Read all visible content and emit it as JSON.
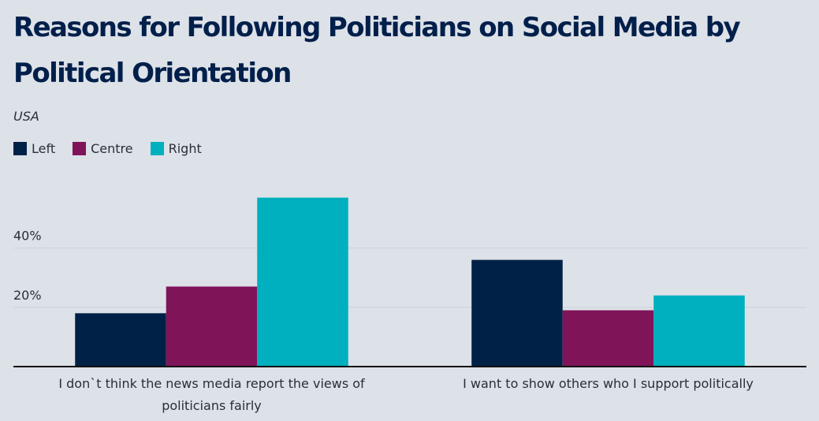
{
  "chart_data": {
    "type": "bar",
    "title": "Reasons for Following Politicians on Social Media by Political Orientation",
    "subtitle": "USA",
    "xlabel": "",
    "ylabel": "",
    "ylim": [
      0,
      60
    ],
    "yticks": [
      20,
      40
    ],
    "ytick_labels": [
      "20%",
      "40%"
    ],
    "grid": true,
    "legend_position": "top-left",
    "categories": [
      [
        "I don`t think the news media report the views of",
        "politicians fairly"
      ],
      [
        "I want to show others who I support politically"
      ]
    ],
    "series": [
      {
        "name": "Left",
        "color": "#002147",
        "values": [
          18,
          36
        ]
      },
      {
        "name": "Centre",
        "color": "#7f1459",
        "values": [
          27,
          19
        ]
      },
      {
        "name": "Right",
        "color": "#00b0be",
        "values": [
          57,
          24
        ]
      }
    ]
  }
}
